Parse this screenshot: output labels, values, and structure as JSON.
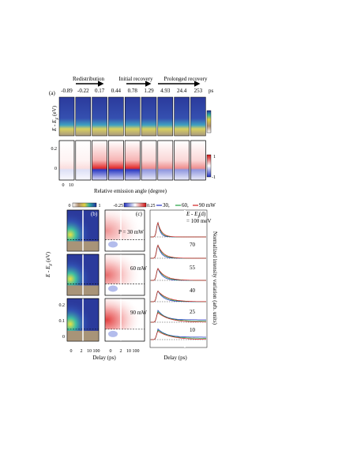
{
  "panel_a": {
    "label": "(a)",
    "phases": [
      "Redistribution",
      "Initial recovery",
      "Prolonged recovery"
    ],
    "delays": [
      "-0.89",
      "-0.22",
      "0.17",
      "0.44",
      "0.78",
      "1.29",
      "4.93",
      "24.4",
      "253"
    ],
    "delay_unit": "ps",
    "y_label": {
      "main": "E - E",
      "sub": "F",
      "unit": " (eV)"
    },
    "y_ticks": [
      "0.2",
      "0"
    ],
    "colorbar_bottom": [
      "1",
      "-1"
    ],
    "x_ticks": [
      "0",
      "10"
    ],
    "x_label": "Relative emission angle (degree)"
  },
  "panel_b": {
    "label": "(b)",
    "colorbar": [
      "0",
      "1"
    ],
    "y_label": {
      "main": "E - E",
      "sub": "F",
      "unit": " (eV)"
    },
    "y_ticks": [
      "0.2",
      "0.1",
      "0"
    ],
    "x_ticks": [
      "0",
      "2",
      "10",
      "100"
    ]
  },
  "panel_c": {
    "label": "(c)",
    "colorbar": [
      "-0.25",
      "0.25"
    ],
    "powers": [
      "P = 30 mW",
      "60 mW",
      "90 mW"
    ],
    "x_ticks": [
      "0",
      "2",
      "10",
      "100"
    ],
    "x_label": "Delay (ps)"
  },
  "panel_d": {
    "label": "(d)",
    "legend": [
      "30,",
      "60,",
      "90 mW"
    ],
    "energy_head": {
      "main": "E - E",
      "sub": "F"
    },
    "energies": [
      "= 100 meV",
      "70",
      "55",
      "40",
      "25",
      "10"
    ],
    "y_label": "Normalized intensity variation (arb. units)",
    "x_label": "Delay (ps)"
  }
}
